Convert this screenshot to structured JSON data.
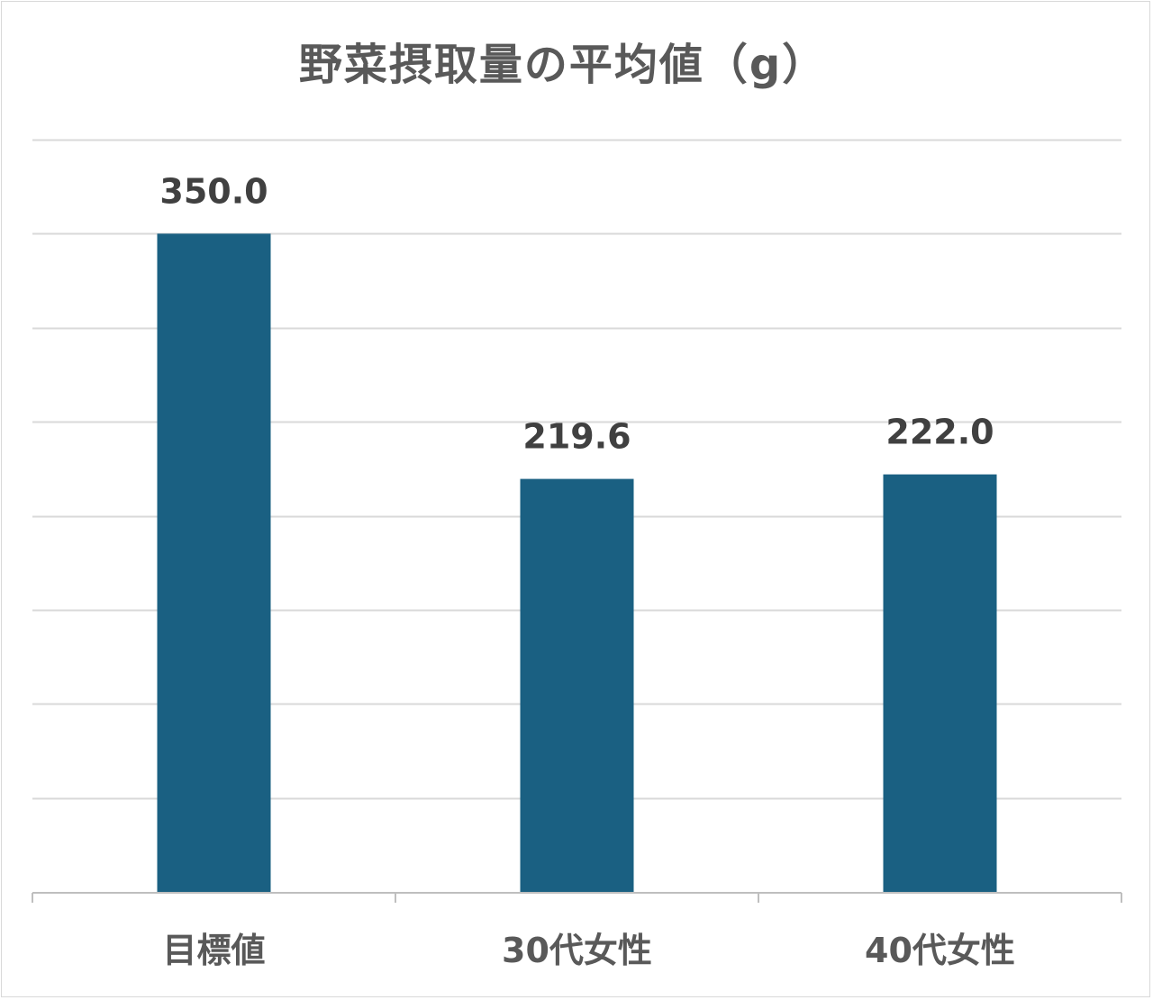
{
  "chart_data": {
    "type": "bar",
    "title": "野菜摂取量の平均値（g）",
    "categories": [
      "目標値",
      "30代女性",
      "40代女性"
    ],
    "values": [
      350.0,
      219.6,
      222.0
    ],
    "data_labels": [
      "350.0",
      "219.6",
      "222.0"
    ],
    "xlabel": "",
    "ylabel": "",
    "ylim": [
      0,
      400
    ],
    "ytick_step": 50,
    "y_axis_labels_visible": false,
    "grid": true,
    "legend": "none",
    "colors": {
      "bar": "#1a6082",
      "grid": "#d9d9d9",
      "axis": "#bfbfbf",
      "text": "#595959",
      "data_label": "#404040",
      "border": "#d9d9d9"
    }
  }
}
